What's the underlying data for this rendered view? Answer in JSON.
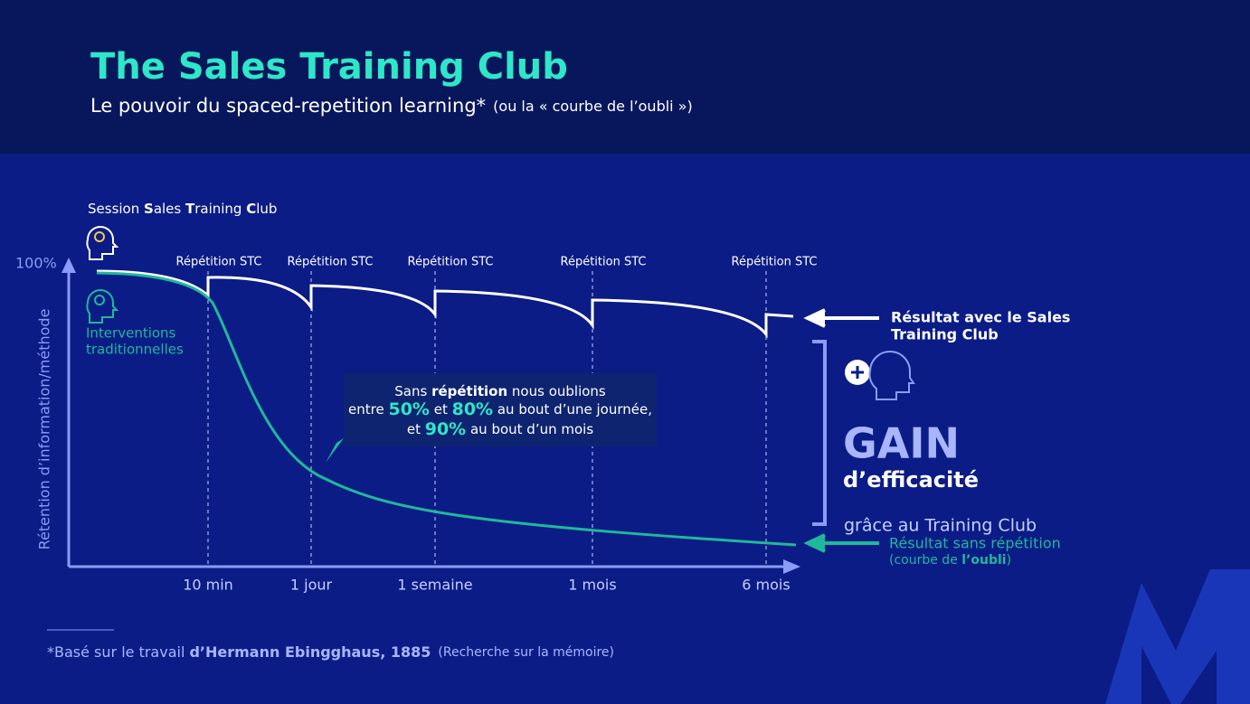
{
  "header": {
    "title": "The Sales Training Club",
    "subtitle": "Le pouvoir du spaced-repetition learning*",
    "subtitle_note": "(ou la « courbe de l’oubli »)"
  },
  "session_label": [
    "Session ",
    "S",
    "ales ",
    "T",
    "raining ",
    "C",
    "lub"
  ],
  "y_axis": {
    "label": "Rétention d’information/méthode",
    "top": "100%"
  },
  "traditional_label": [
    "Interventions",
    "traditionnelles"
  ],
  "repetitions": [
    "Répétition STC",
    "Répétition STC",
    "Répétition STC",
    "Répétition STC",
    "Répétition STC"
  ],
  "x_labels": [
    "10 min",
    "1 jour",
    "1 semaine",
    "1 mois",
    "6 mois"
  ],
  "callout": {
    "line1": [
      "Sans ",
      "répétition",
      " nous oublions"
    ],
    "line2": [
      "entre ",
      "50%",
      " et ",
      "80%",
      " au bout d’une journée,"
    ],
    "line3": [
      "et ",
      "90%",
      " au bout d’un mois"
    ]
  },
  "with_stc": [
    "Résultat avec le Sales",
    "Training Club"
  ],
  "gain": {
    "title": "GAIN",
    "subtitle": "d’efficacité",
    "note": "grâce au Training Club"
  },
  "without": {
    "label": "Résultat sans répétition",
    "note": [
      "(courbe de ",
      "l’oubli",
      ")"
    ]
  },
  "footnote": [
    "*Basé sur le travail ",
    "d’Hermann Ebingghaus, 1885",
    "(Recherche sur la mémoire)"
  ]
}
